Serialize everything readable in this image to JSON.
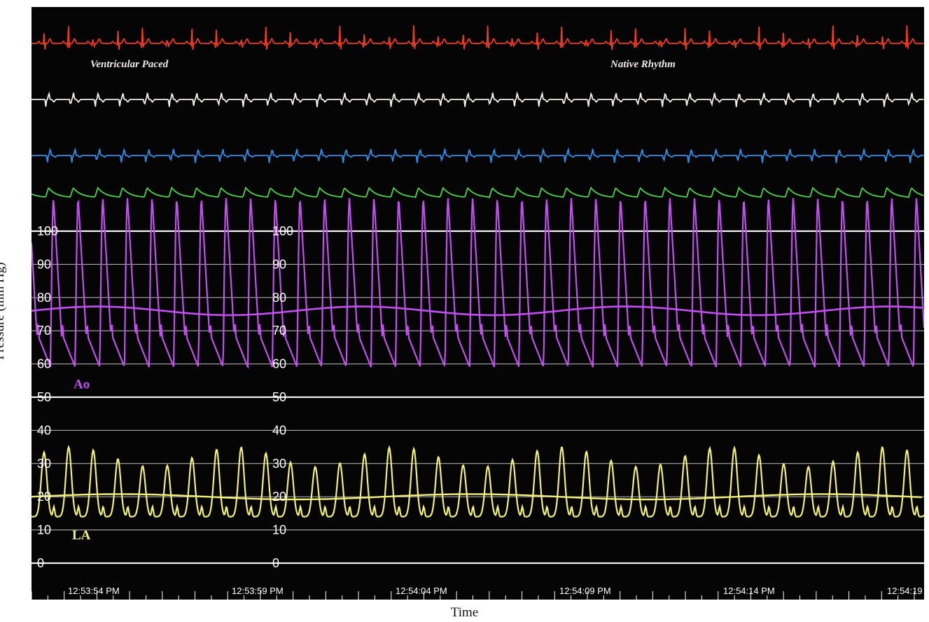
{
  "chart_data": {
    "type": "line",
    "xlabel": "Time",
    "ylabel": "Pressure (mm Hg)",
    "ylim": [
      0,
      100
    ],
    "y_ticks": [
      "0",
      "10",
      "20",
      "30",
      "40",
      "50",
      "60",
      "70",
      "80",
      "90",
      "100"
    ],
    "y_tick_columns": 2,
    "x_tick_labels": [
      "12:53:54 PM",
      "12:53:59 PM",
      "12:54:04 PM",
      "12:54:09 PM",
      "12:54:14 PM",
      "12:54:19"
    ],
    "x_range_seconds": [
      0,
      27.3
    ],
    "annotations": [
      "Ventricular Paced",
      "Native Rhythm"
    ],
    "colors": {
      "background": "#050505",
      "grid": "#ffffff",
      "ecg1": "#f23a23",
      "ecg2": "#f1efe8",
      "ecg3": "#2f8fe8",
      "pleth": "#4cd64a",
      "ao": "#c24ff0",
      "la": "#f2ef7a",
      "ao_label": "#c24ff0",
      "la_label": "#f2ef7a",
      "annotation": "#f2e6f0"
    },
    "series": [
      {
        "name": "Ao",
        "kind": "pressure",
        "beats": 36,
        "systolic_approx": 100,
        "diastolic_approx": 59,
        "mean_approx": 76
      },
      {
        "name": "LA",
        "kind": "pressure",
        "beats": 36,
        "peak_range": [
          29,
          35
        ],
        "trough_approx": 14,
        "mean_approx": 20
      }
    ],
    "waveforms": [
      "ecg-lead-1",
      "ecg-lead-2",
      "ecg-lead-3",
      "pleth"
    ]
  }
}
